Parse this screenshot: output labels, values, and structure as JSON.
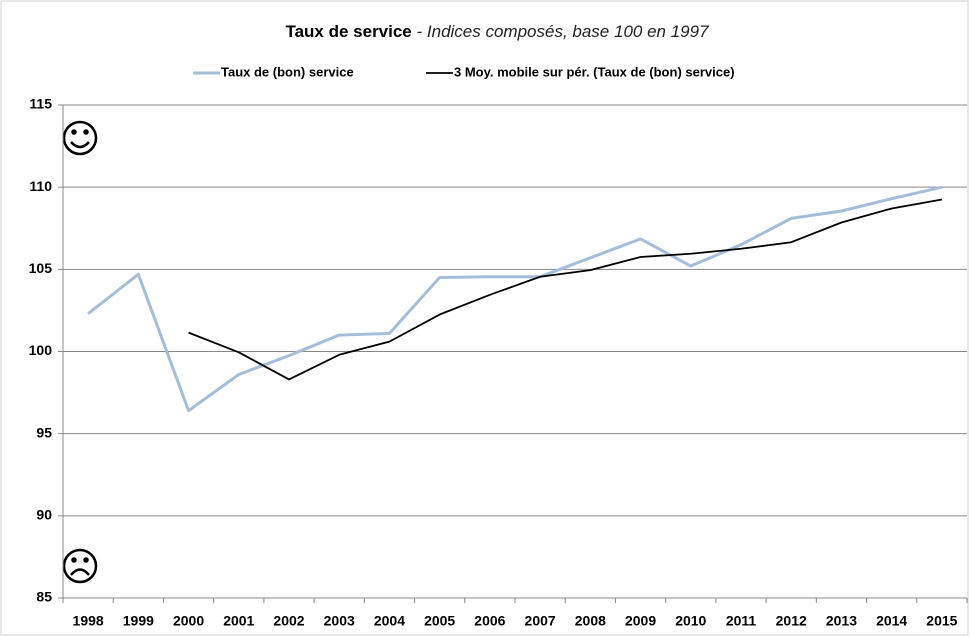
{
  "chart_data": {
    "type": "line",
    "title": "Taux de service",
    "subtitle": " - Indices composés, base 100 en 1997",
    "categories": [
      "1998",
      "1999",
      "2000",
      "2001",
      "2002",
      "2003",
      "2004",
      "2005",
      "2006",
      "2007",
      "2008",
      "2009",
      "2010",
      "2011",
      "2012",
      "2013",
      "2014",
      "2015"
    ],
    "series": [
      {
        "name": "Taux de (bon) service",
        "color": "#a6bdd7",
        "values": [
          102.3,
          104.7,
          96.4,
          98.6,
          99.75,
          101.0,
          101.1,
          104.5,
          104.55,
          104.55,
          105.7,
          106.85,
          105.2,
          106.5,
          108.1,
          108.55,
          109.3,
          110.0
        ]
      },
      {
        "name": "3 Moy. mobile sur pér. (Taux de (bon) service)",
        "color": "#000000",
        "values": [
          null,
          null,
          101.15,
          99.95,
          98.3,
          99.8,
          100.6,
          102.25,
          103.45,
          104.55,
          104.95,
          105.75,
          105.95,
          106.25,
          106.65,
          107.85,
          108.7,
          109.25
        ]
      }
    ],
    "ylim": [
      85,
      115
    ],
    "yticks": [
      85,
      90,
      95,
      100,
      105,
      110,
      115
    ],
    "grid": true,
    "legend": "top"
  }
}
